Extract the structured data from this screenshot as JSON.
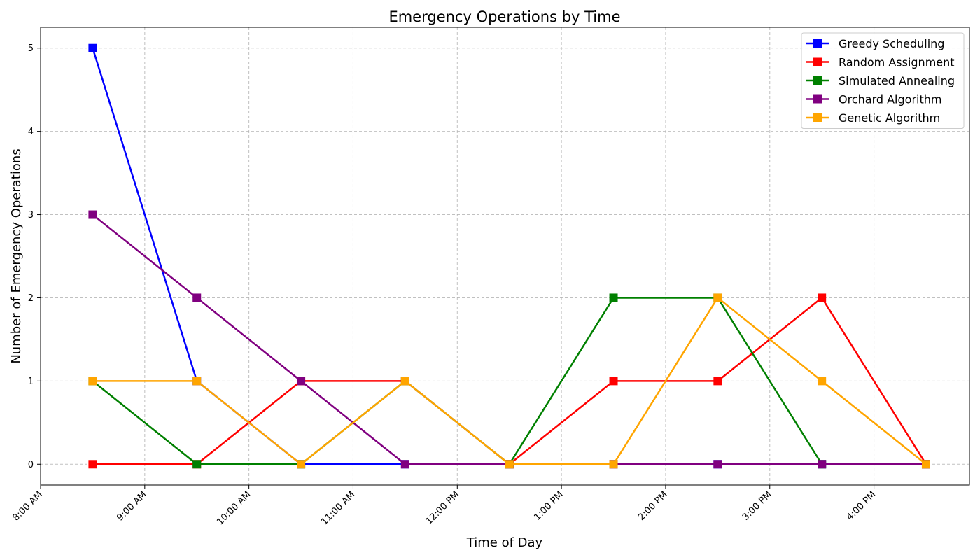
{
  "chart_data": {
    "type": "line",
    "title": "Emergency Operations by Time",
    "xlabel": "Time of Day",
    "ylabel": "Number of Emergency Operations",
    "x_tick_labels": [
      "8:00 AM",
      "9:00 AM",
      "10:00 AM",
      "11:00 AM",
      "12:00 PM",
      "1:00 PM",
      "2:00 PM",
      "3:00 PM",
      "4:00 PM"
    ],
    "y_tick_labels": [
      "0",
      "1",
      "2",
      "3",
      "4",
      "5"
    ],
    "x_points": [
      "8:30 AM",
      "9:30 AM",
      "10:30 AM",
      "11:30 AM",
      "12:30 PM",
      "1:30 PM",
      "2:30 PM",
      "3:30 PM",
      "4:30 PM"
    ],
    "xlim": [
      "8:00 AM",
      "4:55 PM"
    ],
    "ylim": [
      -0.25,
      5.25
    ],
    "grid": true,
    "legend_position": "top-right",
    "marker": "square",
    "series": [
      {
        "name": "Greedy Scheduling",
        "color": "#0000ff",
        "values": [
          5,
          1,
          0,
          0,
          0,
          0,
          0,
          0,
          0
        ]
      },
      {
        "name": "Random Assignment",
        "color": "#ff0000",
        "values": [
          0,
          0,
          1,
          1,
          0,
          1,
          1,
          2,
          0
        ]
      },
      {
        "name": "Simulated Annealing",
        "color": "#008000",
        "values": [
          1,
          0,
          0,
          1,
          0,
          2,
          2,
          0,
          0
        ]
      },
      {
        "name": "Orchard Algorithm",
        "color": "#800080",
        "values": [
          3,
          2,
          1,
          0,
          0,
          0,
          0,
          0,
          0
        ]
      },
      {
        "name": "Genetic Algorithm",
        "color": "#ffa500",
        "values": [
          1,
          1,
          0,
          1,
          0,
          0,
          2,
          1,
          0
        ]
      }
    ]
  }
}
